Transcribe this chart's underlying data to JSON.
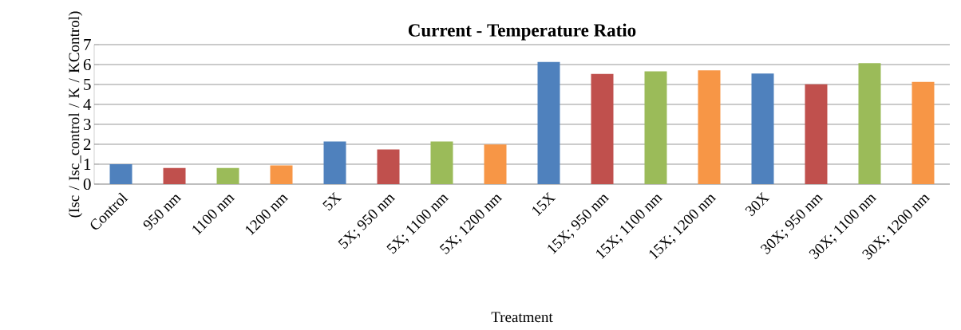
{
  "chart_data": {
    "type": "bar",
    "title": "Current - Temperature Ratio",
    "xlabel": "Treatment",
    "ylabel": "(Isc / Isc_control / K / KControl)",
    "categories": [
      "Control",
      "950 nm",
      "1100 nm",
      "1200 nm",
      "5X",
      "5X; 950 nm",
      "5X; 1100 nm",
      "5X; 1200 nm",
      "15X",
      "15X; 950 nm",
      "15X; 1100 nm",
      "15X; 1200 nm",
      "30X",
      "30X; 950 nm",
      "30X; 1100 nm",
      "30X; 1200 nm"
    ],
    "values": [
      1.0,
      0.81,
      0.81,
      0.94,
      2.14,
      1.74,
      2.14,
      1.99,
      6.13,
      5.53,
      5.66,
      5.71,
      5.55,
      5.01,
      6.07,
      5.13
    ],
    "colors": [
      "#4f81bd",
      "#c0504d",
      "#9bbb59",
      "#f79646",
      "#4f81bd",
      "#c0504d",
      "#9bbb59",
      "#f79646",
      "#4f81bd",
      "#c0504d",
      "#9bbb59",
      "#f79646",
      "#4f81bd",
      "#c0504d",
      "#9bbb59",
      "#f79646"
    ],
    "ylim": [
      0,
      7
    ],
    "yticks": [
      0,
      1,
      2,
      3,
      4,
      5,
      6,
      7
    ],
    "grid": "y"
  }
}
